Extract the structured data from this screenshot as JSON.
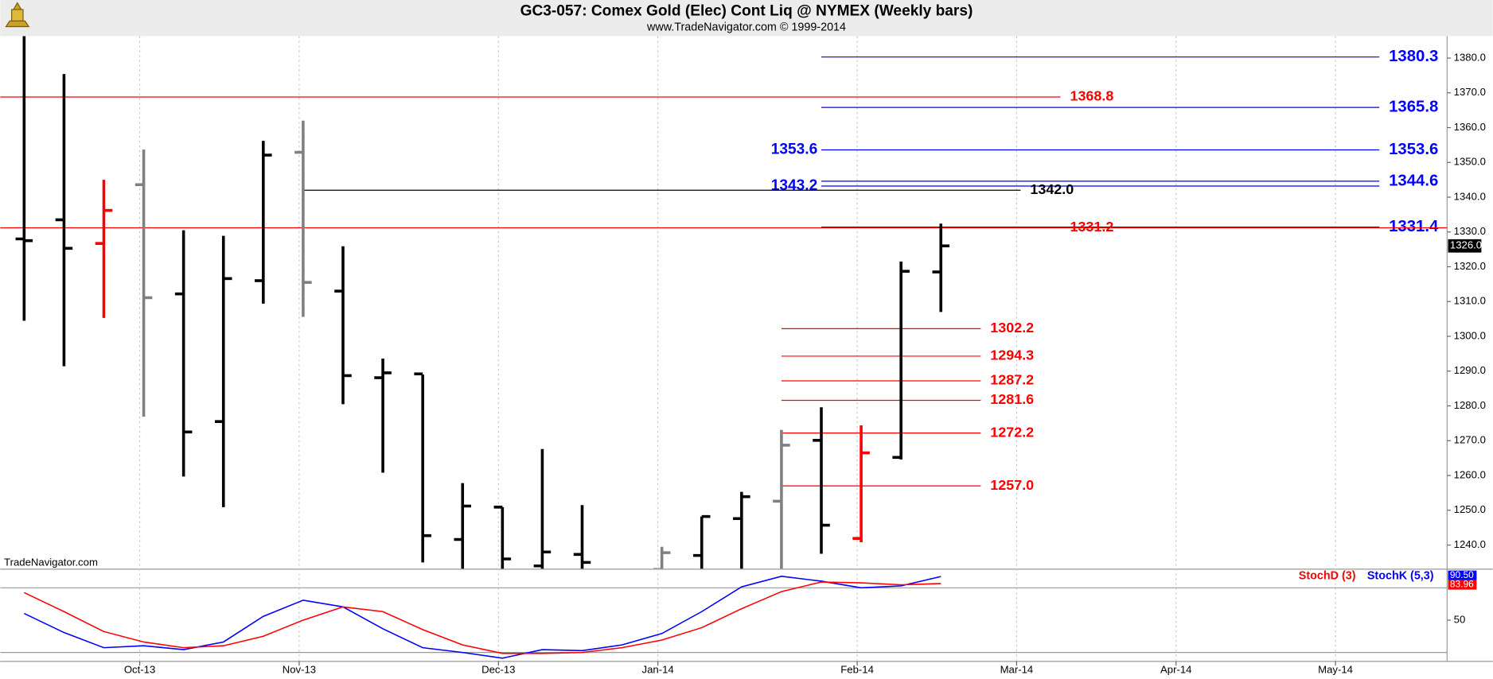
{
  "chart_data": [
    {
      "type": "ohlc",
      "title": "GC3-057:  Comex Gold (Elec) Cont Liq @ NYMEX  (Weekly bars)",
      "subtitle": "www.TradeNavigator.com © 1999-2014",
      "source_note": "TradeNavigator.com",
      "xlim": [
        -0.6,
        35.7
      ],
      "xticks": [
        {
          "value": 2.9,
          "label": "Oct-13"
        },
        {
          "value": 6.9,
          "label": "Nov-13"
        },
        {
          "value": 11.9,
          "label": "Dec-13"
        },
        {
          "value": 15.9,
          "label": "Jan-14"
        },
        {
          "value": 20.9,
          "label": "Feb-14"
        },
        {
          "value": 24.9,
          "label": "Mar-14"
        },
        {
          "value": 28.9,
          "label": "Apr-14"
        },
        {
          "value": 32.9,
          "label": "May-14"
        }
      ],
      "x_grid": true,
      "ylim": [
        1233.2,
        1386.3
      ],
      "yticks": [
        {
          "value": 1240,
          "label": "1240.0"
        },
        {
          "value": 1250,
          "label": "1250.0"
        },
        {
          "value": 1260,
          "label": "1260.0"
        },
        {
          "value": 1270,
          "label": "1270.0"
        },
        {
          "value": 1280,
          "label": "1280.0"
        },
        {
          "value": 1290,
          "label": "1290.0"
        },
        {
          "value": 1300,
          "label": "1300.0"
        },
        {
          "value": 1310,
          "label": "1310.0"
        },
        {
          "value": 1320,
          "label": "1320.0"
        },
        {
          "value": 1330,
          "label": "1330.0"
        },
        {
          "value": 1340,
          "label": "1340.0"
        },
        {
          "value": 1350,
          "label": "1350.0"
        },
        {
          "value": 1360,
          "label": "1360.0"
        },
        {
          "value": 1370,
          "label": "1370.0"
        },
        {
          "value": 1380,
          "label": "1380.0"
        }
      ],
      "bars": {
        "x": [
          0,
          1,
          2,
          3,
          4,
          5,
          6,
          7,
          8,
          9,
          10,
          11,
          12,
          13,
          14,
          16,
          17,
          18,
          19,
          20,
          21,
          22,
          23
        ],
        "open": [
          1328,
          1333.5,
          1326.7,
          1343.6,
          1312.2,
          1275.5,
          1316,
          1352.9,
          1313,
          1288.1,
          1289.2,
          1241.6,
          1250.9,
          1234,
          1237.3,
          1233,
          1237,
          1247.6,
          1252.6,
          1270.1,
          1241.9,
          1265.2,
          1318.5
        ],
        "high": [
          1386.3,
          1375.4,
          1345,
          1353.7,
          1330.5,
          1328.9,
          1356.2,
          1362,
          1325.9,
          1293.6,
          1289,
          1257.8,
          1250.9,
          1267.6,
          1251.5,
          1239.5,
          1248.2,
          1255.3,
          1273.1,
          1279.6,
          1274.4,
          1321.5,
          1332.4
        ],
        "low": [
          1304.5,
          1291.4,
          1305.3,
          1276.9,
          1259.7,
          1250.9,
          1309.4,
          1305.6,
          1280.5,
          1260.8,
          1235,
          1232,
          1232,
          1232,
          1232,
          1232,
          1232,
          1232,
          1232,
          1237.5,
          1240.8,
          1264.6,
          1307
        ],
        "close": [
          1327.5,
          1325.3,
          1336.2,
          1311.1,
          1272.5,
          1316.6,
          1352.1,
          1315.5,
          1288.7,
          1289.5,
          1242.7,
          1251.2,
          1236,
          1238,
          1235,
          1237.8,
          1248.2,
          1253.9,
          1268.7,
          1245.7,
          1266.5,
          1318.7,
          1326.0
        ],
        "colors": [
          "#000000",
          "#000000",
          "#ff0000",
          "#808080",
          "#000000",
          "#000000",
          "#000000",
          "#808080",
          "#000000",
          "#000000",
          "#000000",
          "#000000",
          "#000000",
          "#000000",
          "#000000",
          "#808080",
          "#000000",
          "#000000",
          "#808080",
          "#000000",
          "#ff0000",
          "#000000",
          "#000000"
        ],
        "last_label": "1326.0"
      },
      "levels": [
        {
          "value": 1380.3,
          "color": "#0000ff",
          "from": 20,
          "to": 34,
          "sides": [
            "end"
          ]
        },
        {
          "value": 1368.8,
          "color": "#ff0000",
          "to": 26,
          "sides": [
            "end"
          ]
        },
        {
          "value": 1365.8,
          "color": "#0000ff",
          "from": 20,
          "to": 34,
          "sides": [
            "end"
          ]
        },
        {
          "value": 1353.6,
          "color": "#0000ff",
          "from": 20,
          "to": 34,
          "sides": [
            "start",
            "end"
          ]
        },
        {
          "value": 1344.6,
          "color": "#0000ff",
          "from": 20,
          "to": 34,
          "sides": [
            "end"
          ]
        },
        {
          "value": 1343.2,
          "color": "#0000ff",
          "from": 20,
          "to": 34,
          "sides": [
            "start"
          ]
        },
        {
          "value": 1342,
          "label": "1342.0",
          "color": "#000000",
          "from": 7,
          "to": 25,
          "sides": [
            "end"
          ]
        },
        {
          "value": 1331.4,
          "color": "#0000ff",
          "from": 20,
          "to": 34,
          "sides": [
            "end"
          ]
        },
        {
          "value": 1331.2,
          "color": "#ff0000",
          "label_at": 26,
          "sides": [
            "end"
          ]
        },
        {
          "value": 1302.2,
          "color": "#ff0000",
          "from": 19,
          "to": 24,
          "sides": [
            "end"
          ]
        },
        {
          "value": 1294.3,
          "color": "#ff0000",
          "from": 19,
          "to": 24,
          "sides": [
            "end"
          ]
        },
        {
          "value": 1287.2,
          "color": "#ff0000",
          "from": 19,
          "to": 24,
          "sides": [
            "end"
          ]
        },
        {
          "value": 1281.6,
          "color": "#ff0000",
          "from": 19,
          "to": 24,
          "sides": [
            "end"
          ]
        },
        {
          "value": 1272.2,
          "color": "#ff0000",
          "from": 19,
          "to": 24,
          "sides": [
            "end"
          ]
        },
        {
          "value": 1257,
          "label": "1257.0",
          "color": "#ff0000",
          "from": 19,
          "to": 24,
          "sides": [
            "end"
          ]
        }
      ]
    },
    {
      "type": "line",
      "ylim": [
        13,
        96
      ],
      "yticks": [
        50
      ],
      "hlines": [
        20,
        80
      ],
      "x": [
        0,
        1,
        2,
        3,
        4,
        5,
        6,
        7,
        8,
        9,
        10,
        11,
        12,
        13,
        14,
        15,
        16,
        17,
        18,
        19,
        20,
        21,
        22,
        23
      ],
      "series": [
        {
          "name": "StochK (5,3)",
          "color": "#0000ff",
          "last_label": "90.50",
          "values": [
            56.2,
            38.5,
            24.4,
            26.2,
            22.6,
            29.7,
            53.5,
            68.5,
            62.3,
            42.0,
            24.4,
            20.0,
            14.7,
            22.6,
            21.7,
            27.0,
            37.6,
            57.9,
            80.9,
            90.7,
            86.2,
            80,
            81.8,
            90.5
          ]
        },
        {
          "name": "StochD (3)",
          "color": "#ff0000",
          "last_label": "83.96",
          "values": [
            75.6,
            57.9,
            39.4,
            29.7,
            24.4,
            26.2,
            35.0,
            50.0,
            62.3,
            57.9,
            41.2,
            27.0,
            19.1,
            19.1,
            20.0,
            24.4,
            31.5,
            43.0,
            60.6,
            76.5,
            85.4,
            84.6,
            82.8,
            83.96
          ]
        }
      ]
    }
  ]
}
